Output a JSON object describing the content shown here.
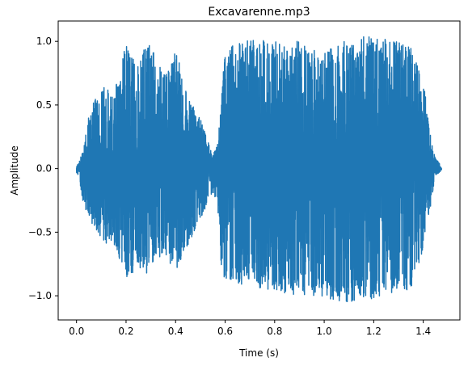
{
  "chart_data": {
    "type": "line",
    "title": "Excavarenne.mp3",
    "xlabel": "Time (s)",
    "ylabel": "Amplitude",
    "xlim": [
      -0.074,
      1.548
    ],
    "ylim": [
      -1.19,
      1.16
    ],
    "xticks": [
      0.0,
      0.2,
      0.4,
      0.6,
      0.8,
      1.0,
      1.2,
      1.4
    ],
    "xtick_labels": [
      "0.0",
      "0.2",
      "0.4",
      "0.6",
      "0.8",
      "1.0",
      "1.2",
      "1.4"
    ],
    "yticks": [
      -1.0,
      -0.5,
      0.0,
      0.5,
      1.0
    ],
    "ytick_labels": [
      "−1.0",
      "−0.5",
      "0.0",
      "0.5",
      "1.0"
    ],
    "grid": false,
    "legend": "none",
    "series": [
      {
        "color": "#1f77b4",
        "duration": 1.474,
        "envelope": {
          "t": [
            0.0,
            0.01,
            0.03,
            0.05,
            0.1,
            0.15,
            0.2,
            0.25,
            0.3,
            0.35,
            0.4,
            0.45,
            0.5,
            0.55,
            0.57,
            0.58,
            0.6,
            0.7,
            0.8,
            0.9,
            1.0,
            1.1,
            1.2,
            1.3,
            1.35,
            1.4,
            1.43,
            1.45,
            1.474
          ],
          "upper": [
            0.02,
            0.05,
            0.18,
            0.42,
            0.68,
            0.58,
            1.0,
            0.85,
            1.05,
            0.75,
            0.95,
            0.55,
            0.4,
            0.1,
            0.2,
            0.45,
            0.95,
            1.02,
            1.0,
            1.0,
            0.92,
            1.02,
            1.05,
            1.0,
            0.95,
            0.7,
            0.25,
            0.08,
            0.02
          ],
          "lower": [
            -0.03,
            -0.08,
            -0.3,
            -0.38,
            -0.58,
            -0.6,
            -0.88,
            -0.78,
            -0.85,
            -0.65,
            -0.82,
            -0.6,
            -0.4,
            -0.18,
            -0.3,
            -0.72,
            -0.9,
            -0.92,
            -0.97,
            -1.0,
            -1.02,
            -1.05,
            -1.02,
            -0.98,
            -0.95,
            -0.65,
            -0.3,
            -0.05,
            -0.02
          ]
        }
      }
    ]
  }
}
